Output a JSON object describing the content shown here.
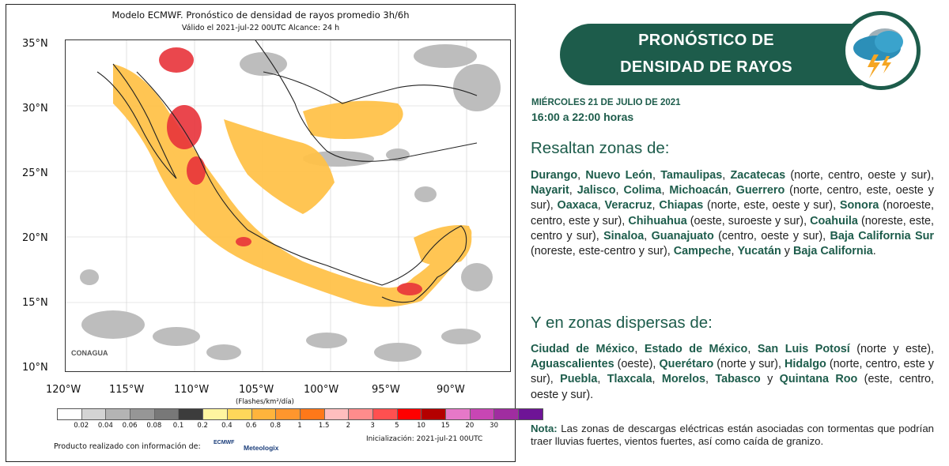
{
  "map_panel": {
    "title": "Modelo ECMWF. Pronóstico de densidad de rayos promedio 3h/6h",
    "subtitle": "Válido el 2021-jul-22 00UTC    Alcance: 24 h",
    "lat_labels": [
      "35°N",
      "30°N",
      "25°N",
      "20°N",
      "15°N",
      "10°N"
    ],
    "lon_labels": [
      "120°W",
      "115°W",
      "110°W",
      "105°W",
      "100°W",
      "95°W",
      "90°W"
    ],
    "colorbar_units": "(Flashes/km²/día)",
    "colorbar_labels": [
      "0.02",
      "0.04",
      "0.06",
      "0.08",
      "0.1",
      "0.2",
      "0.4",
      "0.6",
      "0.8",
      "1",
      "1.5",
      "2",
      "3",
      "5",
      "10",
      "15",
      "20",
      "30"
    ],
    "colorbar_colors": [
      "#ffffff",
      "#d4d4d4",
      "#b4b4b4",
      "#969696",
      "#787878",
      "#3c3c3c",
      "#fff5a0",
      "#ffd75a",
      "#ffb43c",
      "#ff962d",
      "#ff7819",
      "#ffbebe",
      "#ff8c8c",
      "#ff5050",
      "#ff0000",
      "#b40000",
      "#e678c8",
      "#c846b4",
      "#a02da0",
      "#6e1496"
    ],
    "initialization": "Inicialización: 2021-jul-21 00UTC",
    "producto": "Producto realizado con información de:",
    "logo_conagua": "CONAGUA",
    "logo_ecmwf": "ECMWF",
    "logo_meteologix": "Meteologix"
  },
  "right_panel": {
    "banner_title": "PRONÓSTICO DE\nDENSIDAD DE RAYOS",
    "badge_icon": "storm-cloud-icon",
    "date": "MIÉRCOLES 21 DE JULIO DE 2021",
    "hours": "16:00 a 22:00 horas",
    "heading1": "Resaltan zonas de:",
    "heading2": "Y en zonas dispersas de:",
    "paragraph1": [
      {
        "s": "Durango",
        "b": true
      },
      {
        "s": ", ",
        "b": false
      },
      {
        "s": "Nuevo León",
        "b": true
      },
      {
        "s": ", ",
        "b": false
      },
      {
        "s": "Tamaulipas",
        "b": true
      },
      {
        "s": ", ",
        "b": false
      },
      {
        "s": "Zacatecas",
        "b": true
      },
      {
        "s": " (norte, centro, oeste y sur), ",
        "b": false
      },
      {
        "s": "Nayarit",
        "b": true
      },
      {
        "s": ", ",
        "b": false
      },
      {
        "s": "Jalisco",
        "b": true
      },
      {
        "s": ", ",
        "b": false
      },
      {
        "s": "Colima",
        "b": true
      },
      {
        "s": ", ",
        "b": false
      },
      {
        "s": "Michoacán",
        "b": true
      },
      {
        "s": ", ",
        "b": false
      },
      {
        "s": "Guerrero",
        "b": true
      },
      {
        "s": " (norte, centro, este, oeste y sur), ",
        "b": false
      },
      {
        "s": "Oaxaca",
        "b": true
      },
      {
        "s": ", ",
        "b": false
      },
      {
        "s": "Veracruz",
        "b": true
      },
      {
        "s": ", ",
        "b": false
      },
      {
        "s": "Chiapas",
        "b": true
      },
      {
        "s": " (norte, este, oeste y sur), ",
        "b": false
      },
      {
        "s": "Sonora",
        "b": true
      },
      {
        "s": " (noroeste, centro, este y sur), ",
        "b": false
      },
      {
        "s": "Chihuahua",
        "b": true
      },
      {
        "s": " (oeste, suroeste y sur), ",
        "b": false
      },
      {
        "s": "Coahuila",
        "b": true
      },
      {
        "s": " (noreste, este, centro y sur), ",
        "b": false
      },
      {
        "s": "Sinaloa",
        "b": true
      },
      {
        "s": ", ",
        "b": false
      },
      {
        "s": "Guanajuato",
        "b": true
      },
      {
        "s": " (centro, oeste y sur), ",
        "b": false
      },
      {
        "s": "Baja California Sur",
        "b": true
      },
      {
        "s": " (noreste, este-centro y sur), ",
        "b": false
      },
      {
        "s": "Campeche",
        "b": true
      },
      {
        "s": ", ",
        "b": false
      },
      {
        "s": "Yucatán",
        "b": true
      },
      {
        "s": " y ",
        "b": false
      },
      {
        "s": "Baja California",
        "b": true
      },
      {
        "s": ".",
        "b": false
      }
    ],
    "paragraph2": [
      {
        "s": "Ciudad de México",
        "b": true
      },
      {
        "s": ", ",
        "b": false
      },
      {
        "s": "Estado de México",
        "b": true
      },
      {
        "s": ", ",
        "b": false
      },
      {
        "s": "San Luis Potosí",
        "b": true
      },
      {
        "s": " (norte y este), ",
        "b": false
      },
      {
        "s": "Aguascalientes",
        "b": true
      },
      {
        "s": " (oeste), ",
        "b": false
      },
      {
        "s": "Querétaro",
        "b": true
      },
      {
        "s": " (norte y sur), ",
        "b": false
      },
      {
        "s": "Hidalgo",
        "b": true
      },
      {
        "s": " (norte, centro, este y sur), ",
        "b": false
      },
      {
        "s": "Puebla",
        "b": true
      },
      {
        "s": ", ",
        "b": false
      },
      {
        "s": "Tlaxcala",
        "b": true
      },
      {
        "s": ", ",
        "b": false
      },
      {
        "s": "Morelos",
        "b": true
      },
      {
        "s": ", ",
        "b": false
      },
      {
        "s": "Tabasco",
        "b": true
      },
      {
        "s": " y ",
        "b": false
      },
      {
        "s": "Quintana Roo",
        "b": true
      },
      {
        "s": " (este, centro, oeste y sur).",
        "b": false
      }
    ],
    "note_label": "Nota:",
    "note_text": " Las zonas de descargas eléctricas están asociadas con tormentas que podrían traer lluvias fuertes, vientos fuertes, así como caída de granizo."
  }
}
